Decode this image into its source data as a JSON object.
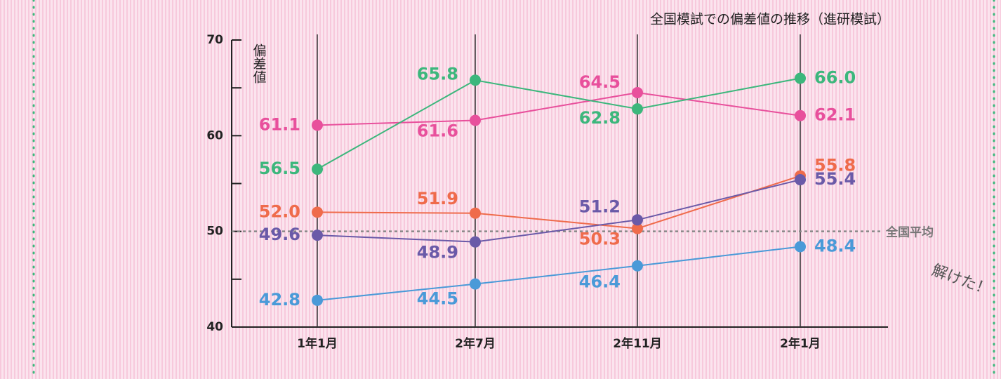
{
  "chart_data": {
    "type": "line",
    "title": "全国模試での偏差値の推移（進研模試）",
    "y_label": "偏差値",
    "annotation": "解けた！",
    "categories": [
      "1年1月",
      "2年7月",
      "2年11月",
      "2年1月"
    ],
    "series": [
      {
        "color": "#e8509c",
        "values": [
          61.1,
          61.6,
          64.5,
          62.1
        ],
        "value_labels": [
          "61.1",
          "61.6",
          "64.5",
          "62.1"
        ]
      },
      {
        "color": "#3cb77c",
        "values": [
          56.5,
          65.8,
          62.8,
          66.0
        ],
        "value_labels": [
          "56.5",
          "65.8",
          "62.8",
          "66.0"
        ]
      },
      {
        "color": "#ef6b4b",
        "values": [
          52.0,
          51.9,
          50.3,
          55.8
        ],
        "value_labels": [
          "52.0",
          "51.9",
          "50.3",
          "55.8"
        ]
      },
      {
        "color": "#6a5aa8",
        "values": [
          49.6,
          48.9,
          51.2,
          55.4
        ],
        "value_labels": [
          "49.6",
          "48.9",
          "51.2",
          "55.4"
        ]
      },
      {
        "color": "#4a9ad8",
        "values": [
          42.8,
          44.5,
          46.4,
          48.4
        ],
        "value_labels": [
          "42.8",
          "44.5",
          "46.4",
          "48.4"
        ]
      }
    ],
    "ylim": [
      40,
      70
    ],
    "yticks": [
      40,
      50,
      60,
      70
    ],
    "minor_yticks": [
      45,
      55,
      65
    ],
    "reference_line": {
      "value": 50,
      "label": "全国平均"
    },
    "grid": true
  }
}
